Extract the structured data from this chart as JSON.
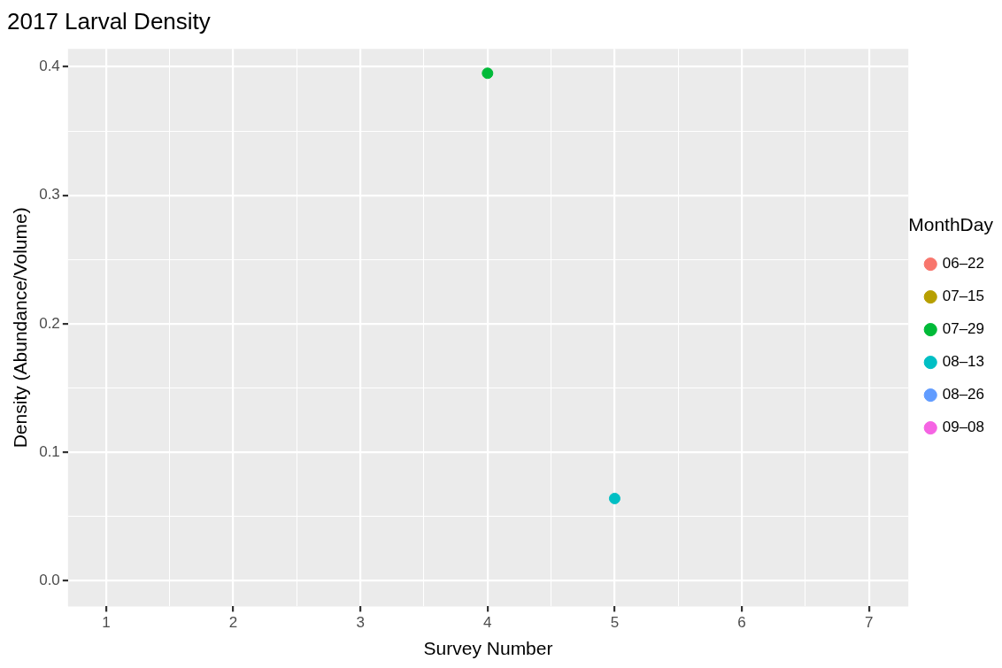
{
  "chart_data": {
    "type": "scatter",
    "title": "2017 Larval Density",
    "xlabel": "Survey Number",
    "ylabel": "Density (Abundance/Volume)",
    "legend_title": "MonthDay",
    "legend": "right",
    "grid": true,
    "marker": "circle",
    "xlim": [
      0.7,
      7.31
    ],
    "ylim": [
      -0.02,
      0.414
    ],
    "xticks": [
      1,
      {
        "value": 1.5,
        "label": null
      },
      2,
      {
        "value": 2.5,
        "label": null
      },
      3,
      {
        "value": 3.5,
        "label": null
      },
      4,
      {
        "value": 4.5,
        "label": null
      },
      5,
      {
        "value": 5.5,
        "label": null
      },
      6,
      {
        "value": 6.5,
        "label": null
      },
      7
    ],
    "yticks": [
      "0.0",
      {
        "value": 0.05,
        "label": null
      },
      {
        "value": 0.1,
        "label": "0.1"
      },
      {
        "value": 0.15,
        "label": null
      },
      {
        "value": 0.2,
        "label": "0.2"
      },
      {
        "value": 0.25,
        "label": null
      },
      {
        "value": 0.3,
        "label": "0.3"
      },
      {
        "value": 0.35,
        "label": null
      },
      {
        "value": 0.4,
        "label": "0.4"
      }
    ],
    "series": [
      {
        "name": "06–22",
        "color": "#f8766d"
      },
      {
        "name": "07–15",
        "color": "#b79f00"
      },
      {
        "name": "07–29",
        "color": "#00ba38",
        "x": [
          4
        ],
        "values": [
          0.395
        ]
      },
      {
        "name": "08–13",
        "color": "#00bfc4",
        "x": [
          5
        ],
        "values": [
          0.064
        ]
      },
      {
        "name": "08–26",
        "color": "#619cff"
      },
      {
        "name": "09–08",
        "color": "#f564e3"
      }
    ]
  }
}
